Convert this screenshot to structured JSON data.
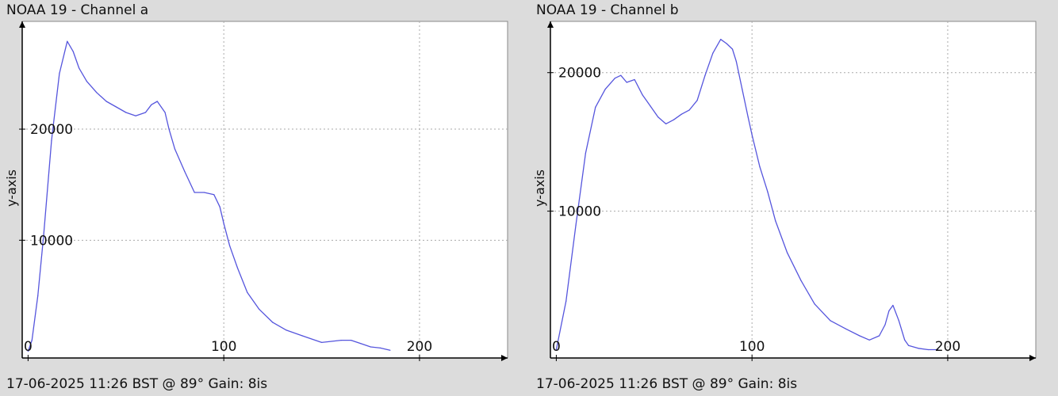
{
  "colors": {
    "background": "#dcdcdc",
    "plot_area": "#ffffff",
    "series_line": "#5555dd",
    "grid": "#aaaaaa",
    "axis": "#000000"
  },
  "chart_data": [
    {
      "type": "line",
      "title": "NOAA 19 - Channel a",
      "footer": "17-06-2025 11:26 BST @ 89° Gain: 8is",
      "xlabel": "",
      "ylabel": "y-axis",
      "xlim": [
        -3,
        245
      ],
      "ylim": [
        -600,
        29700
      ],
      "xticks": [
        0,
        100,
        200
      ],
      "yticks": [
        10000,
        20000
      ],
      "grid": true,
      "series": [
        {
          "x": [
            0,
            2,
            5,
            8,
            12,
            16,
            20,
            23,
            26,
            30,
            35,
            40,
            45,
            50,
            55,
            60,
            63,
            66,
            70,
            72,
            75,
            80,
            85,
            90,
            95,
            98,
            100,
            103,
            107,
            112,
            118,
            125,
            132,
            140,
            150,
            160,
            165,
            170,
            175,
            180,
            185
          ],
          "y": [
            0,
            1000,
            5000,
            10500,
            19000,
            25000,
            27900,
            27000,
            25500,
            24300,
            23300,
            22500,
            22000,
            21500,
            21200,
            21500,
            22200,
            22500,
            21500,
            20000,
            18200,
            16200,
            14300,
            14300,
            14100,
            13000,
            11500,
            9500,
            7500,
            5300,
            3800,
            2600,
            1900,
            1400,
            800,
            1000,
            1000,
            700,
            400,
            300,
            100
          ]
        }
      ]
    },
    {
      "type": "line",
      "title": "NOAA 19 - Channel b",
      "footer": "17-06-2025 11:26 BST @ 89° Gain: 8is",
      "xlabel": "",
      "ylabel": "y-axis",
      "xlim": [
        -3,
        245
      ],
      "ylim": [
        -600,
        23700
      ],
      "xticks": [
        0,
        100,
        200
      ],
      "yticks": [
        10000,
        20000
      ],
      "grid": true,
      "series": [
        {
          "x": [
            0,
            5,
            10,
            15,
            20,
            25,
            30,
            33,
            36,
            40,
            44,
            48,
            52,
            56,
            60,
            64,
            68,
            72,
            76,
            80,
            84,
            87,
            90,
            92,
            95,
            98,
            100,
            104,
            108,
            112,
            118,
            125,
            132,
            140,
            148,
            155,
            160,
            165,
            168,
            170,
            172,
            175,
            178,
            180,
            185,
            190,
            195
          ],
          "y": [
            0,
            3500,
            9000,
            14200,
            17500,
            18800,
            19600,
            19800,
            19300,
            19500,
            18400,
            17600,
            16800,
            16300,
            16600,
            17000,
            17300,
            18000,
            19800,
            21400,
            22400,
            22100,
            21700,
            20800,
            18800,
            16800,
            15500,
            13200,
            11400,
            9300,
            7000,
            5000,
            3300,
            2100,
            1500,
            1000,
            700,
            1000,
            1800,
            2800,
            3200,
            2100,
            700,
            300,
            100,
            0,
            0
          ]
        }
      ]
    }
  ]
}
